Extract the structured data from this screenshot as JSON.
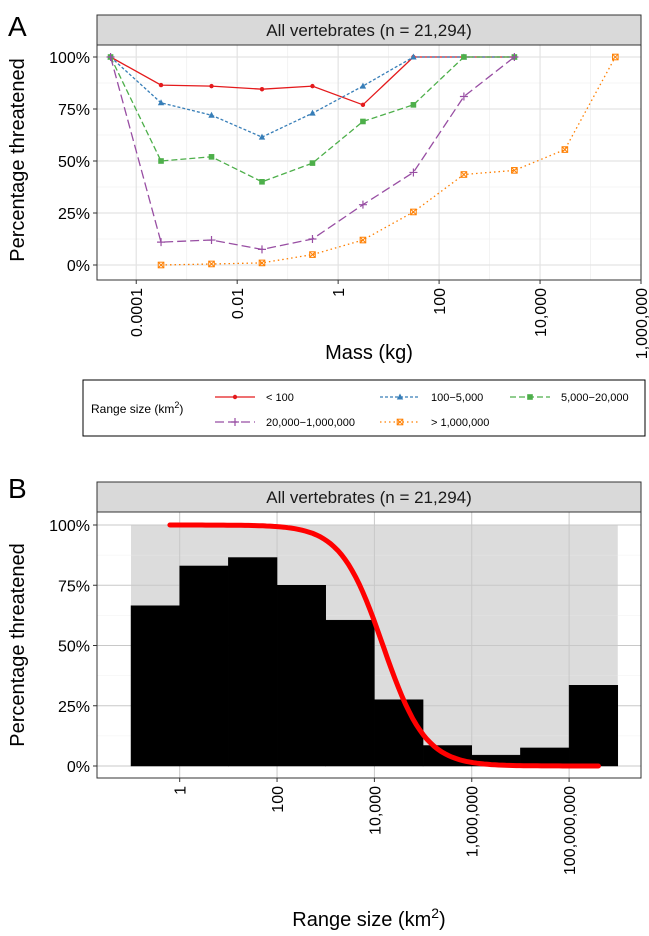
{
  "chart_data": [
    {
      "panel_letter": "A",
      "type": "line",
      "facet_title": "All vertebrates (n = 21,294)",
      "xlabel": "Mass (kg)",
      "ylabel": "Percentage threatened",
      "x_scale": "log10",
      "xlim": [
        1.67e-05,
        1000000
      ],
      "ylim": [
        0,
        100
      ],
      "x_ticks": [
        0.0001,
        0.01,
        1,
        100,
        10000,
        1000000
      ],
      "x_tick_labels": [
        "0.0001",
        "0.01",
        "1",
        "100",
        "10,000",
        "1,000,000"
      ],
      "y_ticks": [
        0,
        25,
        50,
        75,
        100
      ],
      "y_tick_labels": [
        "0%",
        "25%",
        "50%",
        "75%",
        "100%"
      ],
      "grid": true,
      "legend_position": "bottom",
      "legend_title": "Range size (km",
      "legend_title_sup": "2",
      "legend_title_end": ")",
      "series": [
        {
          "name": "< 100",
          "color": "#E41A1C",
          "dash": "solid",
          "marker": "dot",
          "points": [
            [
              3.1e-05,
              100
            ],
            [
              0.00031,
              86.5
            ],
            [
              0.0031,
              86
            ],
            [
              0.031,
              84.5
            ],
            [
              0.31,
              86
            ],
            [
              3.1,
              77
            ],
            [
              31,
              100
            ],
            [
              310,
              100
            ],
            [
              3100,
              100
            ]
          ]
        },
        {
          "name": "100−5,000",
          "color": "#377EB8",
          "dash": "dotted-short",
          "marker": "triangle",
          "points": [
            [
              3.1e-05,
              100
            ],
            [
              0.00031,
              78
            ],
            [
              0.0031,
              72
            ],
            [
              0.031,
              61.5
            ],
            [
              0.31,
              73
            ],
            [
              3.1,
              86
            ],
            [
              31,
              100
            ],
            [
              310,
              100
            ],
            [
              3100,
              100
            ]
          ]
        },
        {
          "name": "5,000−20,000",
          "color": "#4DAF4A",
          "dash": "dashed",
          "marker": "square",
          "points": [
            [
              3.1e-05,
              100
            ],
            [
              0.00031,
              50
            ],
            [
              0.0031,
              52
            ],
            [
              0.031,
              40
            ],
            [
              0.31,
              49
            ],
            [
              3.1,
              69
            ],
            [
              31,
              77
            ],
            [
              310,
              100
            ],
            [
              3100,
              100
            ]
          ]
        },
        {
          "name": "20,000−1,000,000",
          "color": "#984EA3",
          "dash": "longdash",
          "marker": "plus",
          "points": [
            [
              3.1e-05,
              100
            ],
            [
              0.00031,
              11
            ],
            [
              0.0031,
              12
            ],
            [
              0.031,
              7.5
            ],
            [
              0.31,
              12.5
            ],
            [
              3.1,
              29
            ],
            [
              31,
              44.5
            ],
            [
              310,
              81
            ],
            [
              3100,
              100
            ]
          ]
        },
        {
          "name": "> 1,000,000",
          "color": "#FF7F00",
          "dash": "dotted",
          "marker": "square-x",
          "points": [
            [
              0.00031,
              0
            ],
            [
              0.0031,
              0.5
            ],
            [
              0.031,
              1
            ],
            [
              0.31,
              5
            ],
            [
              3.1,
              12
            ],
            [
              31,
              25.5
            ],
            [
              310,
              43.5
            ],
            [
              3100,
              45.5
            ],
            [
              31000,
              55.5
            ],
            [
              310000,
              100
            ]
          ]
        }
      ]
    },
    {
      "panel_letter": "B",
      "type": "bar",
      "facet_title": "All vertebrates (n = 21,294)",
      "xlabel": "Range size (km",
      "xlabel_sup": "2",
      "xlabel_end": ")",
      "ylabel": "Percentage threatened",
      "x_scale": "log10",
      "xlim": [
        0.02,
        3000000000
      ],
      "ylim": [
        0,
        100
      ],
      "x_ticks": [
        1,
        100,
        10000,
        1000000,
        100000000
      ],
      "x_tick_labels": [
        "1",
        "100",
        "10,000",
        "1,000,000",
        "100,000,000"
      ],
      "y_ticks": [
        0,
        25,
        50,
        75,
        100
      ],
      "y_tick_labels": [
        "0%",
        "25%",
        "50%",
        "75%",
        "100%"
      ],
      "grid": true,
      "bars": {
        "bin_edges": [
          0.1,
          1,
          10,
          100,
          1000,
          10000,
          100000,
          1000000,
          10000000,
          100000000,
          1000000000
        ],
        "values": [
          66.5,
          83,
          86.5,
          75,
          60.5,
          27.5,
          8.5,
          4.5,
          7.5,
          33.5
        ],
        "color": "#000000"
      },
      "shaded_range": [
        0.1,
        1000000000
      ],
      "curve": {
        "color": "#FF0000",
        "x_start": 0.63,
        "x_end": 400000000,
        "midpoint": 15000,
        "slope_per_log10": 1.0
      }
    }
  ]
}
